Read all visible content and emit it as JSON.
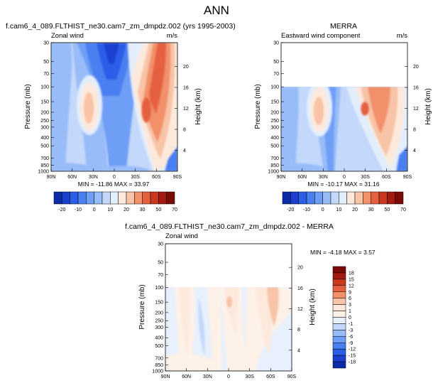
{
  "page_title": "ANN",
  "chart_data": [
    {
      "type": "heatmap",
      "title": "f.cam6_4_089.FLTHIST_ne30.cam7_zm_dmpdz.002 (yrs 1995-2003)",
      "subtitle_left": "Zonal wind",
      "subtitle_right": "m/s",
      "ylabel": "Pressure (mb)",
      "ylabel_right": "Height (km)",
      "x_ticks": [
        "90N",
        "60N",
        "30N",
        "0",
        "30S",
        "60S",
        "90S"
      ],
      "y_ticks": [
        "30",
        "50",
        "70",
        "100",
        "150",
        "200",
        "250",
        "300",
        "400",
        "500",
        "700",
        "850",
        "1000"
      ],
      "y_ticks_right": [
        "20",
        "16",
        "12",
        "8",
        "4"
      ],
      "stats": "MIN = -11.86  MAX = 33.97",
      "plev_top": 30
    },
    {
      "type": "heatmap",
      "title": "MERRA",
      "subtitle_left": "Eastward wind component",
      "subtitle_right": "m/s",
      "ylabel": "Pressure (mb)",
      "ylabel_right": "Height (km)",
      "x_ticks": [
        "90N",
        "60N",
        "30N",
        "0",
        "30S",
        "60S",
        "90S"
      ],
      "y_ticks": [
        "30",
        "50",
        "70",
        "100",
        "150",
        "200",
        "250",
        "300",
        "400",
        "500",
        "700",
        "850",
        "1000"
      ],
      "y_ticks_right": [
        "20",
        "16",
        "12",
        "8",
        "4"
      ],
      "stats": "MIN = -10.17  MAX = 31.16",
      "plev_top": 100
    },
    {
      "type": "heatmap",
      "title": "f.cam6_4_089.FLTHIST_ne30.cam7_zm_dmpdz.002 - MERRA",
      "subtitle_left": "Zonal wind",
      "subtitle_right": "",
      "ylabel": "Pressure (mb)",
      "ylabel_right": "Height (km)",
      "x_ticks": [
        "90N",
        "60N",
        "30N",
        "0",
        "30S",
        "60S",
        "90S"
      ],
      "y_ticks": [
        "30",
        "50",
        "70",
        "100",
        "150",
        "200",
        "250",
        "300",
        "400",
        "500",
        "700",
        "850",
        "1000"
      ],
      "y_ticks_right": [
        "20",
        "16",
        "12",
        "8",
        "4"
      ],
      "stats": "MIN =  -4.18  MAX =  3.57",
      "plev_top": 100
    }
  ],
  "colorbar_abs": {
    "labels": [
      "-20",
      "-10",
      "0",
      "10",
      "20",
      "30",
      "50",
      "70"
    ],
    "colors": [
      "#0a2aa8",
      "#1a3fcf",
      "#2a5de8",
      "#4a7ff0",
      "#6e9ef5",
      "#98bcf8",
      "#c3d8fb",
      "#e3eefc",
      "#fde9dc",
      "#f8c3a6",
      "#f2906a",
      "#e5603f",
      "#c9381f",
      "#a31b10",
      "#7a0a06"
    ]
  },
  "colorbar_diff": {
    "labels": [
      "18",
      "15",
      "12",
      "9",
      "6",
      "3",
      "1",
      "0",
      "-1",
      "-3",
      "-6",
      "-9",
      "-12",
      "-15",
      "-18"
    ],
    "colors": [
      "#7a0a06",
      "#a31b10",
      "#c9381f",
      "#e5603f",
      "#f2906a",
      "#f8c3a6",
      "#fde9dc",
      "#fdf1e8",
      "#e7f0fc",
      "#c3d8fb",
      "#98bcf8",
      "#6e9ef5",
      "#4a7ff0",
      "#2a5de8",
      "#1a3fcf",
      "#0a2aa8"
    ]
  }
}
